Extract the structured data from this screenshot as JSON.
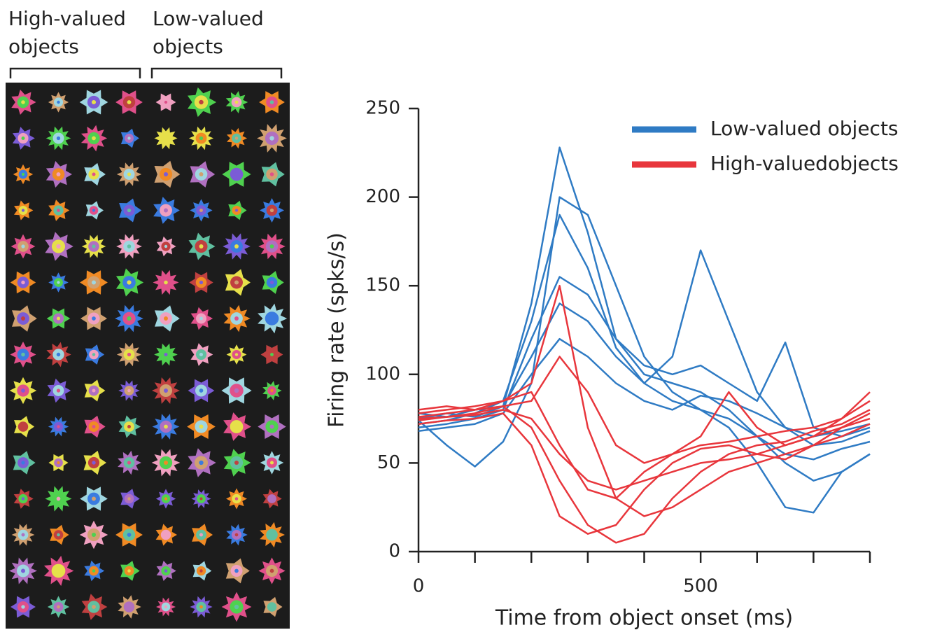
{
  "left_panel": {
    "high_label": [
      "High-valued",
      "objects"
    ],
    "low_label": [
      "Low-valued",
      "objects"
    ]
  },
  "chart_data": {
    "type": "line",
    "xlabel": "Time from object onset (ms)",
    "ylabel": "Firing rate (spks/s)",
    "x": [
      0,
      50,
      100,
      150,
      200,
      250,
      300,
      350,
      400,
      450,
      500,
      550,
      600,
      650,
      700,
      750,
      800
    ],
    "xlim": [
      0,
      800
    ],
    "xticks": [
      0,
      500
    ],
    "xtick_marks": [
      0,
      100,
      200,
      300,
      400,
      500,
      600,
      700,
      800
    ],
    "ylim": [
      0,
      250
    ],
    "yticks": [
      0,
      50,
      100,
      150,
      200,
      250
    ],
    "legend": "upper right",
    "series": [
      {
        "name": "Low-valued objects",
        "color": "#2f7bc4",
        "values": [
          [
            75,
            78,
            76,
            82,
            140,
            228,
            180,
            120,
            100,
            95,
            90,
            80,
            65,
            55,
            52,
            58,
            62
          ],
          [
            72,
            74,
            78,
            85,
            130,
            190,
            160,
            115,
            95,
            110,
            170,
            130,
            90,
            70,
            60,
            62,
            68
          ],
          [
            70,
            72,
            75,
            80,
            120,
            155,
            145,
            120,
            105,
            100,
            105,
            95,
            85,
            118,
            70,
            65,
            70
          ],
          [
            78,
            76,
            80,
            82,
            110,
            140,
            130,
            110,
            95,
            85,
            80,
            75,
            65,
            50,
            40,
            45,
            55
          ],
          [
            68,
            70,
            72,
            78,
            100,
            120,
            110,
            95,
            85,
            80,
            88,
            85,
            78,
            70,
            65,
            68,
            72
          ],
          [
            74,
            60,
            48,
            62,
            95,
            200,
            190,
            150,
            110,
            90,
            80,
            70,
            50,
            25,
            22,
            45,
            55
          ]
        ]
      },
      {
        "name": "High-valuedobjects",
        "color": "#e8363c",
        "values": [
          [
            78,
            80,
            82,
            85,
            95,
            150,
            70,
            30,
            20,
            25,
            35,
            45,
            50,
            55,
            60,
            65,
            72
          ],
          [
            75,
            76,
            78,
            82,
            70,
            40,
            15,
            5,
            10,
            30,
            45,
            55,
            60,
            62,
            68,
            72,
            80
          ],
          [
            80,
            82,
            80,
            85,
            90,
            60,
            35,
            30,
            45,
            55,
            65,
            90,
            70,
            60,
            65,
            75,
            85
          ],
          [
            72,
            74,
            75,
            78,
            60,
            20,
            10,
            15,
            35,
            50,
            58,
            60,
            55,
            52,
            60,
            70,
            78
          ],
          [
            76,
            78,
            80,
            82,
            85,
            110,
            90,
            60,
            50,
            55,
            60,
            62,
            65,
            68,
            70,
            75,
            90
          ],
          [
            74,
            76,
            77,
            80,
            75,
            55,
            40,
            35,
            40,
            45,
            50,
            52,
            55,
            60,
            65,
            70,
            75
          ]
        ]
      }
    ]
  }
}
